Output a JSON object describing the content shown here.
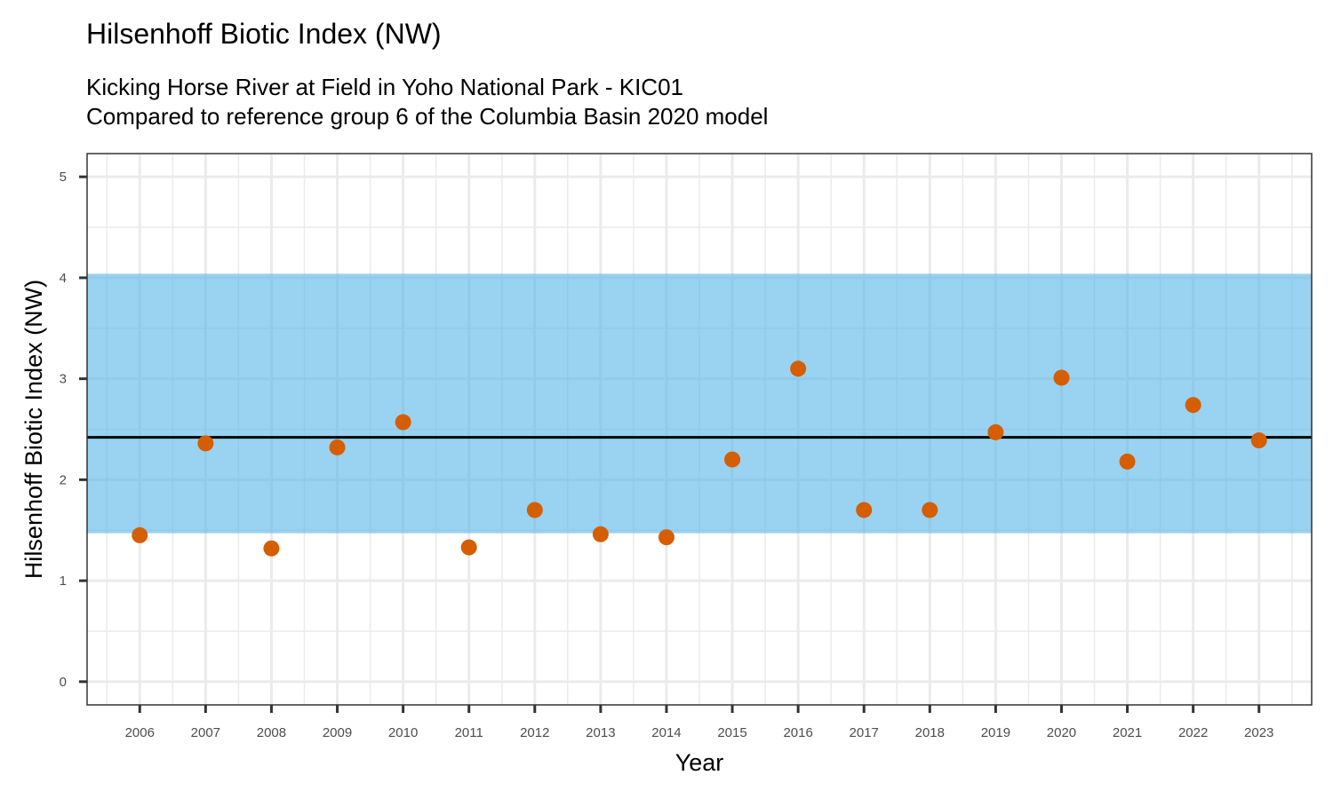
{
  "chart_data": {
    "type": "scatter",
    "title": "Hilsenhoff Biotic Index (NW)",
    "subtitle_lines": [
      "Kicking Horse River at Field in Yoho National Park - KIC01",
      "Compared to reference group 6 of the Columbia Basin 2020 model"
    ],
    "xlabel": "Year",
    "ylabel": "Hilsenhoff Biotic Index (NW)",
    "x": [
      2006,
      2007,
      2008,
      2009,
      2010,
      2011,
      2012,
      2013,
      2014,
      2015,
      2016,
      2017,
      2018,
      2019,
      2020,
      2021,
      2022,
      2023
    ],
    "x_tick_labels": [
      "2006",
      "2007",
      "2008",
      "2009",
      "2010",
      "2011",
      "2012",
      "2013",
      "2014",
      "2015",
      "2016",
      "2017",
      "2018",
      "2019",
      "2020",
      "2021",
      "2022",
      "2023"
    ],
    "series": [
      {
        "name": "Hilsenhoff Biotic Index (NW)",
        "values": [
          1.45,
          2.36,
          1.32,
          2.32,
          2.57,
          1.33,
          1.7,
          1.46,
          1.43,
          2.2,
          3.1,
          1.7,
          1.7,
          2.47,
          3.01,
          2.18,
          2.74,
          2.39
        ],
        "color": "#D55E00"
      }
    ],
    "reference_band": {
      "lower": 1.47,
      "upper": 4.04,
      "color": "#56B4E9"
    },
    "reference_mean": {
      "value": 2.42,
      "color": "#000000"
    },
    "y_ticks": [
      0,
      1,
      2,
      3,
      4,
      5
    ],
    "y_tick_labels": [
      "0",
      "1",
      "2",
      "3",
      "4",
      "5"
    ],
    "ylim": [
      -0.23,
      5.23
    ],
    "xlim": [
      2005.2,
      2023.8
    ],
    "grid": true,
    "legend": "none"
  }
}
